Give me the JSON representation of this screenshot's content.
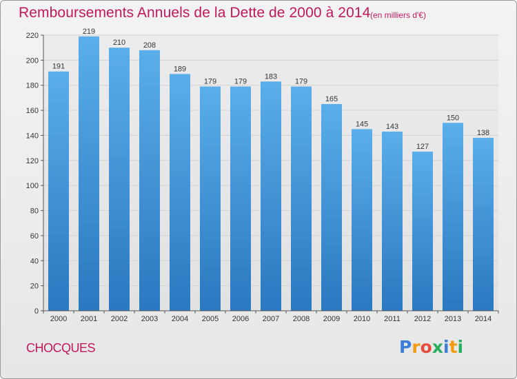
{
  "title": "Remboursements Annuels de la Dette de 2000 à 2014",
  "subtitle": "(en milliers d'€)",
  "commune": "CHOCQUES",
  "logo": {
    "letters": [
      "P",
      "r",
      "o",
      "x",
      "i",
      "t",
      "i"
    ],
    "colors": [
      "#3b7dd8",
      "#f39c12",
      "#e74c3c",
      "#27ae60",
      "#3b7dd8",
      "#f39c12",
      "#27ae60"
    ]
  },
  "colors": {
    "title": "#c2185b",
    "bar_top": "#5aaeea",
    "bar_bottom": "#2a78c0",
    "grid": "#d2d2d2"
  },
  "chart_data": {
    "type": "bar",
    "title": "Remboursements Annuels de la Dette de 2000 à 2014",
    "subtitle": "(en milliers d'€)",
    "xlabel": "",
    "ylabel": "",
    "categories": [
      "2000",
      "2001",
      "2002",
      "2003",
      "2004",
      "2005",
      "2006",
      "2007",
      "2008",
      "2009",
      "2010",
      "2011",
      "2012",
      "2013",
      "2014"
    ],
    "values": [
      191,
      219,
      210,
      208,
      189,
      179,
      179,
      183,
      179,
      165,
      145,
      143,
      127,
      150,
      138
    ],
    "ylim": [
      0,
      220
    ],
    "yticks": [
      0,
      20,
      40,
      60,
      80,
      100,
      120,
      140,
      160,
      180,
      200,
      220
    ],
    "grid": true,
    "legend": "none"
  }
}
